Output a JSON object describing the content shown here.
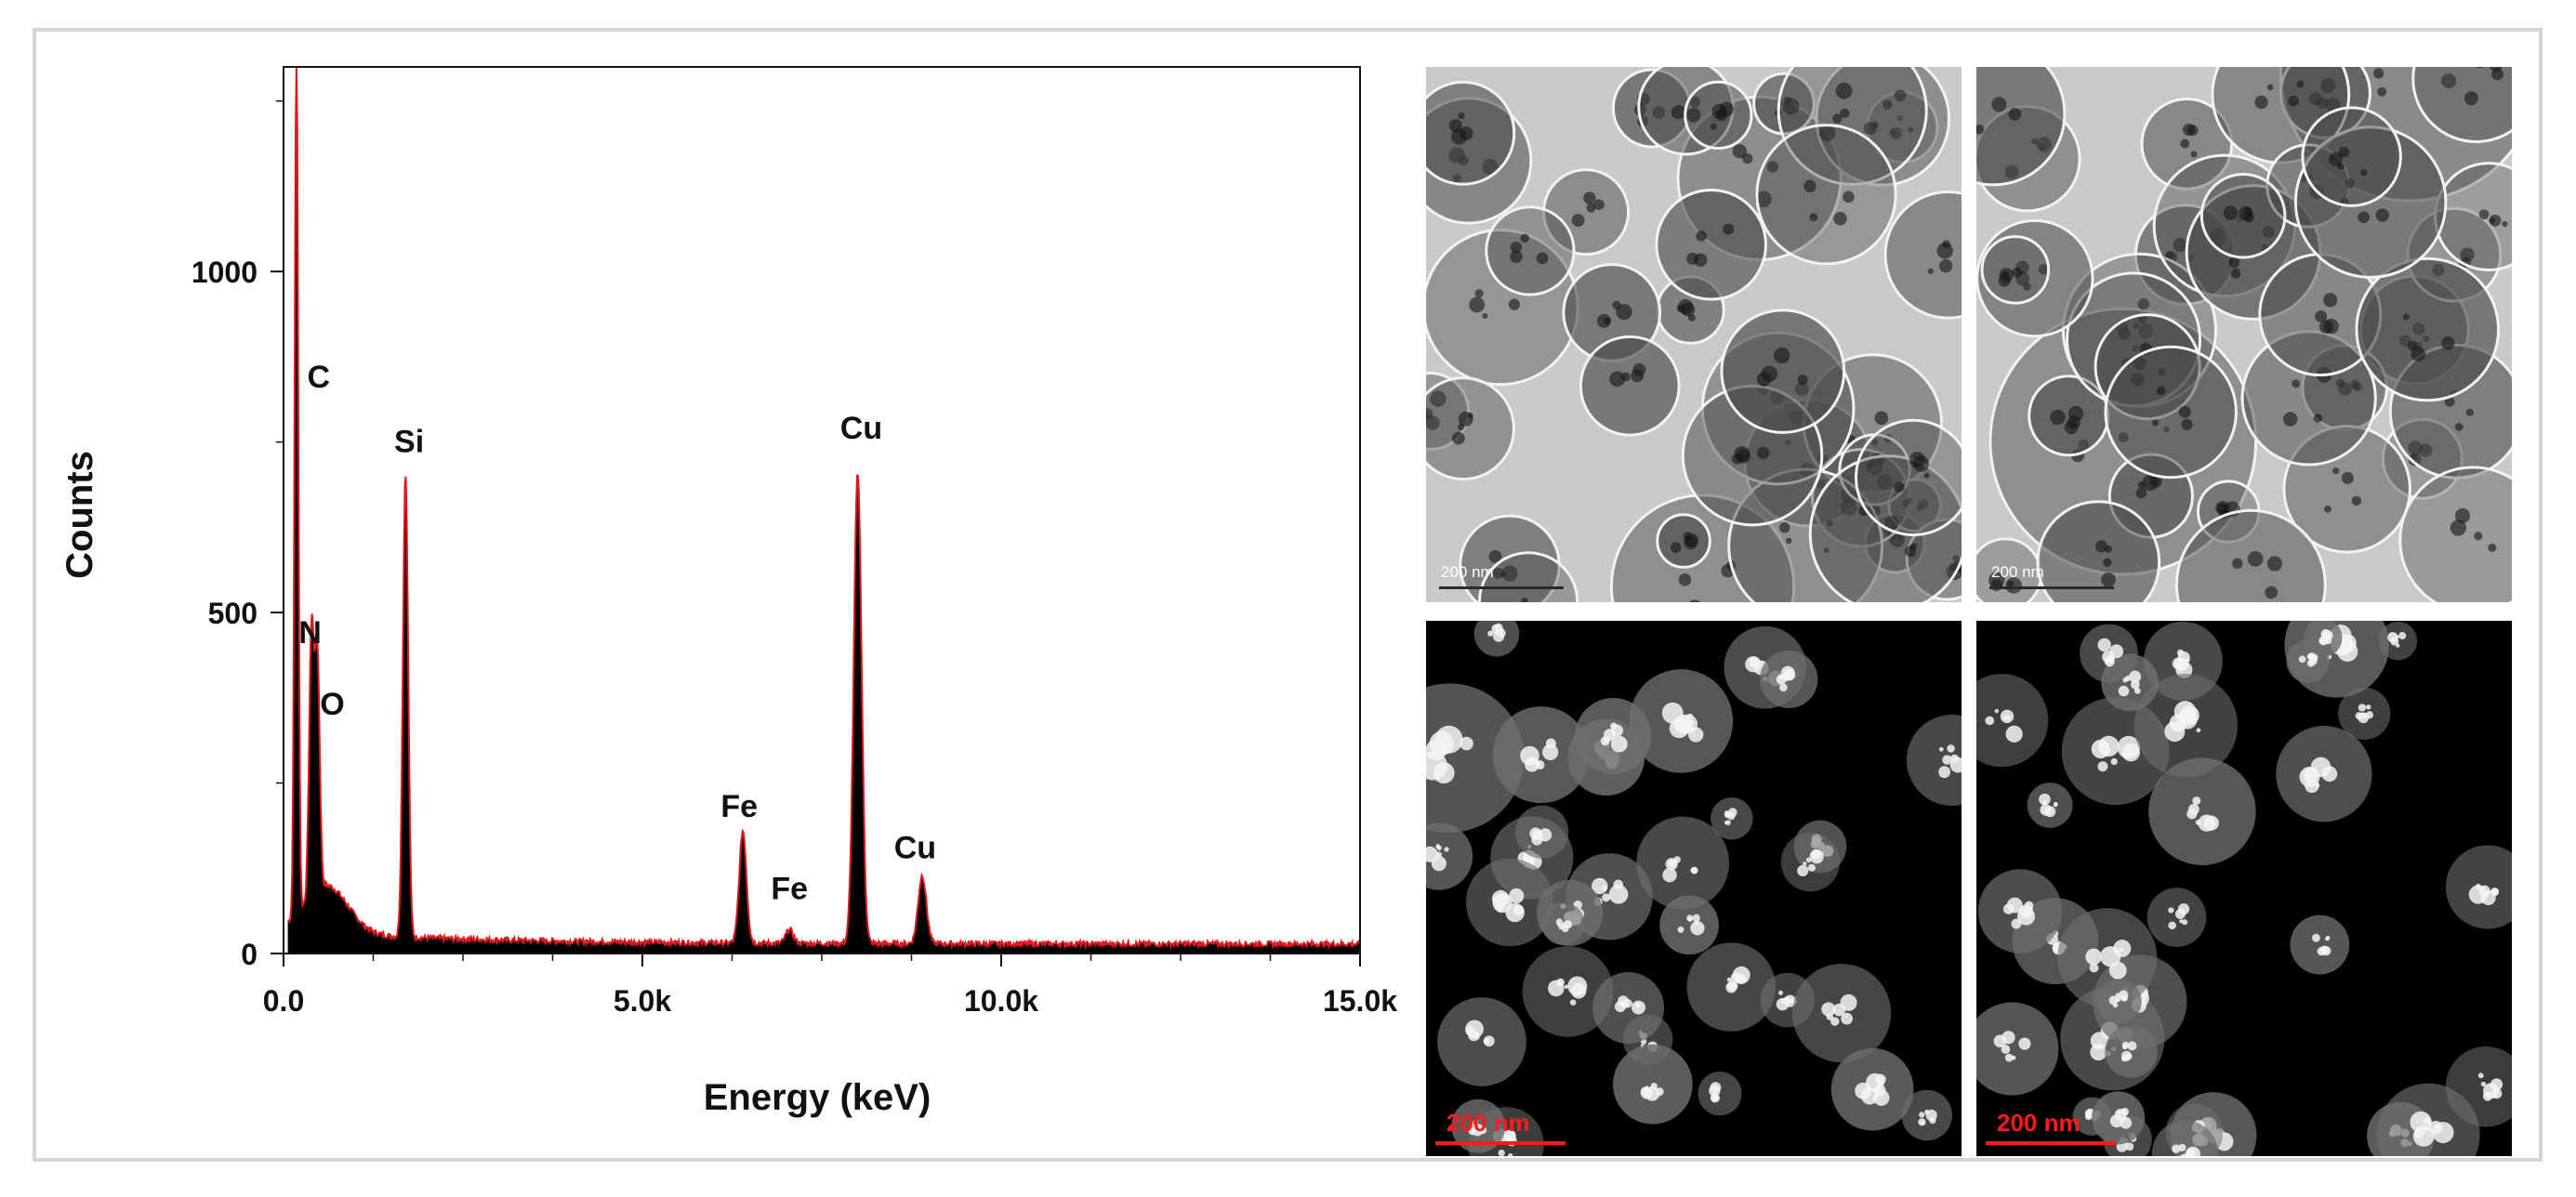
{
  "chart_data": {
    "type": "line",
    "title": "",
    "xlabel": "Energy (keV)",
    "ylabel": "Counts",
    "xlim": [
      0,
      15000
    ],
    "ylim": [
      0,
      1300
    ],
    "xticks": [
      0,
      5000,
      10000,
      15000
    ],
    "xtick_labels": [
      "0.0",
      "5.0k",
      "10.0k",
      "15.0k"
    ],
    "yticks": [
      0,
      500,
      1000
    ],
    "ytick_labels": [
      "0",
      "500",
      "1000"
    ],
    "grid": false,
    "colors": {
      "spectrum_fill": "#000000",
      "spectrum_outline": "#e0191f"
    },
    "peaks": [
      {
        "label": "C",
        "energy": 180,
        "counts": 1300
      },
      {
        "label": "N",
        "energy": 390,
        "counts": 400
      },
      {
        "label": "O",
        "energy": 470,
        "counts": 360
      },
      {
        "label": "Si",
        "energy": 1700,
        "counts": 690
      },
      {
        "label": "Fe",
        "energy": 6400,
        "counts": 175
      },
      {
        "label": "Fe",
        "energy": 7050,
        "counts": 30
      },
      {
        "label": "Cu",
        "energy": 8000,
        "counts": 700
      },
      {
        "label": "Cu",
        "energy": 8900,
        "counts": 110
      }
    ],
    "peak_labels": [
      {
        "text": "C",
        "energy": 490,
        "counts": 830
      },
      {
        "text": "N",
        "energy": 370,
        "counts": 455
      },
      {
        "text": "O",
        "energy": 680,
        "counts": 350
      },
      {
        "text": "Si",
        "energy": 1750,
        "counts": 735
      },
      {
        "text": "Cu",
        "energy": 8050,
        "counts": 755
      },
      {
        "text": "Fe",
        "energy": 6350,
        "counts": 200
      },
      {
        "text": "Fe",
        "energy": 7050,
        "counts": 80
      },
      {
        "text": "Cu",
        "energy": 8800,
        "counts": 140
      }
    ],
    "background_level": 10
  },
  "micrographs": [
    {
      "name": "tem-bright-field-1",
      "mode": "bright-field",
      "scale_label": "200 nm"
    },
    {
      "name": "tem-bright-field-2",
      "mode": "bright-field",
      "scale_label": "200 nm"
    },
    {
      "name": "stem-dark-field-1",
      "mode": "dark-field",
      "scale_label": "200 nm"
    },
    {
      "name": "stem-dark-field-2",
      "mode": "dark-field",
      "scale_label": "200 nm"
    }
  ]
}
